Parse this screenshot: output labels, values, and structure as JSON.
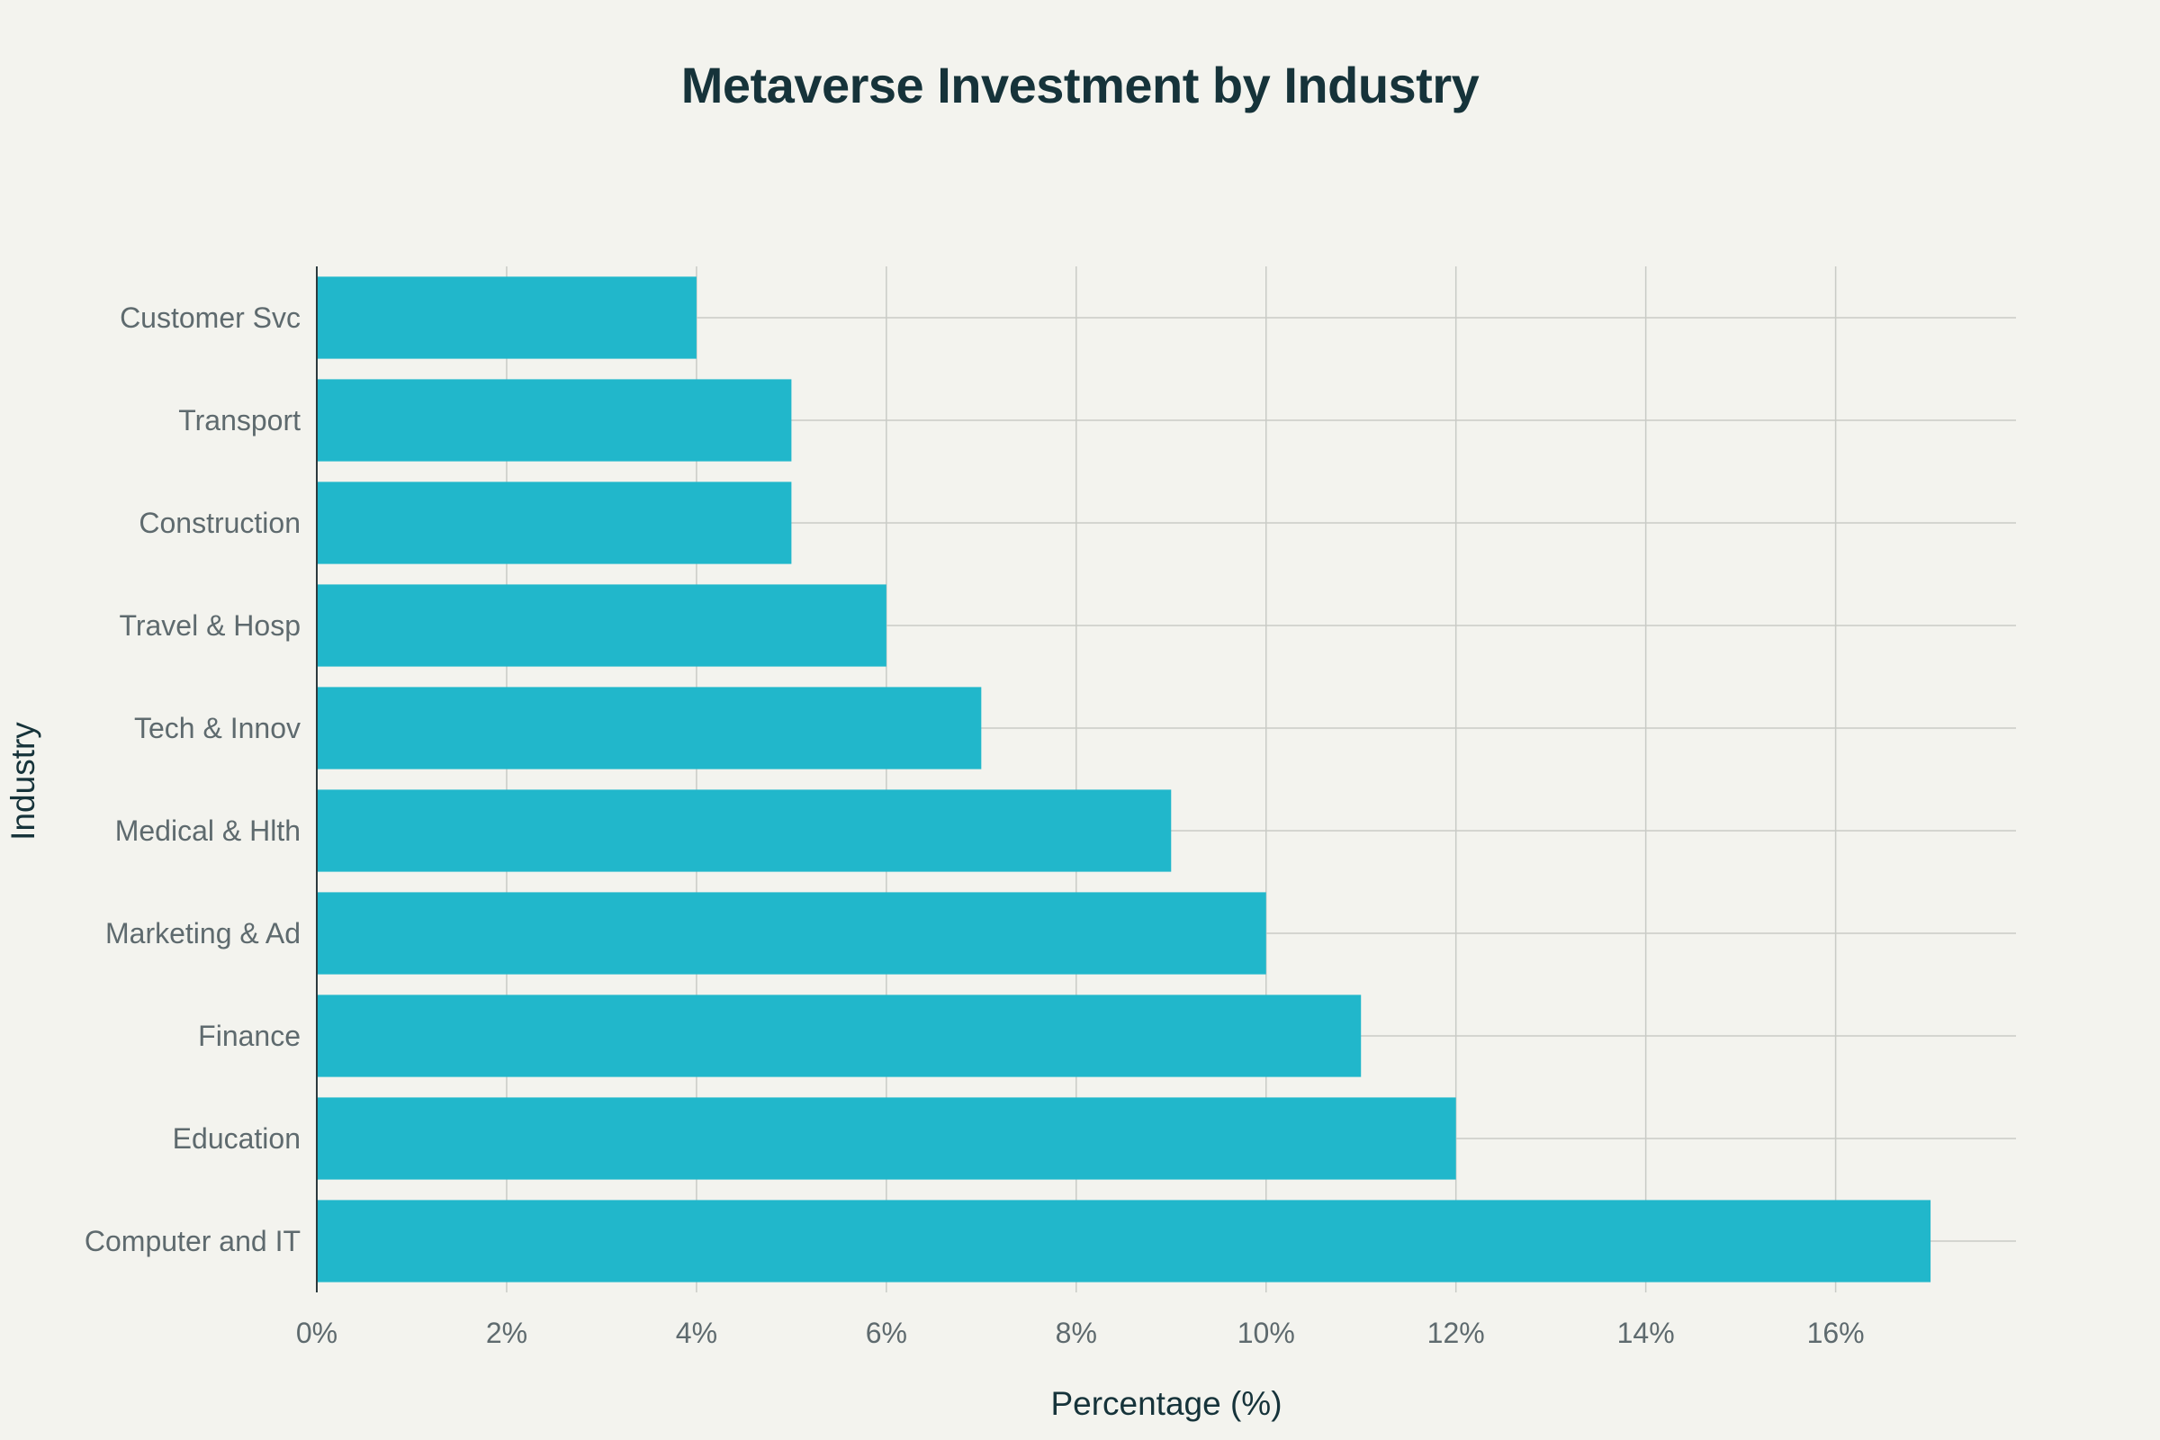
{
  "chart_data": {
    "type": "bar",
    "orientation": "horizontal",
    "title": "Metaverse Investment by Industry",
    "xlabel": "Percentage (%)",
    "ylabel": "Industry",
    "categories": [
      "Computer and IT",
      "Education",
      "Finance",
      "Marketing & Ad",
      "Medical & Hlth",
      "Tech & Innov",
      "Travel & Hosp",
      "Construction",
      "Transport",
      "Customer Svc"
    ],
    "values": [
      17,
      12,
      11,
      10,
      9,
      7,
      6,
      5,
      5,
      4
    ],
    "xlim": [
      0,
      17.9
    ],
    "xticks": [
      0,
      2,
      4,
      6,
      8,
      10,
      12,
      14,
      16
    ],
    "xtick_labels": [
      "0%",
      "2%",
      "4%",
      "6%",
      "8%",
      "10%",
      "12%",
      "14%",
      "16%"
    ],
    "grid": true,
    "legend": "none",
    "colors": {
      "bar": "#21b7cb",
      "background": "#f3f3ee",
      "grid": "#c9cbc6",
      "title": "#16333a",
      "tick_text": "#5e6a6e"
    }
  }
}
